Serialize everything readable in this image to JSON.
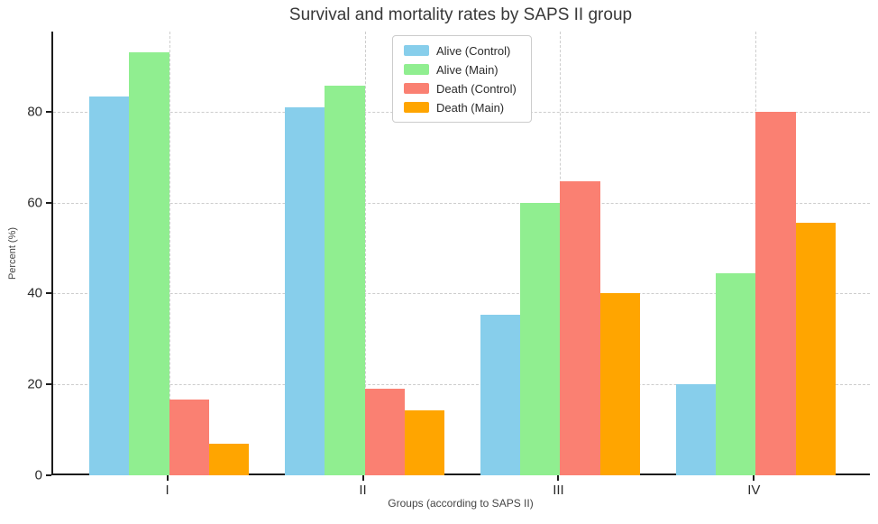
{
  "chart_data": {
    "type": "bar",
    "title": "Survival and mortality rates by SAPS II group",
    "xlabel": "Groups (according to SAPS II)",
    "ylabel": "Percent (%)",
    "categories": [
      "I",
      "II",
      "III",
      "IV"
    ],
    "series": [
      {
        "name": "Alive (Control)",
        "color": "#87CEEB",
        "values": [
          83.3,
          81.0,
          35.3,
          20.0
        ]
      },
      {
        "name": "Alive (Main)",
        "color": "#90EE90",
        "values": [
          93.0,
          85.7,
          60.0,
          44.4
        ]
      },
      {
        "name": "Death (Control)",
        "color": "#FA8072",
        "values": [
          16.7,
          19.0,
          64.7,
          80.0
        ]
      },
      {
        "name": "Death (Main)",
        "color": "#FFA500",
        "values": [
          7.0,
          14.3,
          40.0,
          55.6
        ]
      }
    ],
    "yticks": [
      0,
      20,
      40,
      60,
      80
    ],
    "ylim": [
      0,
      97.6
    ],
    "grid": true,
    "grid_style": "dashed",
    "legend_position": "upper center",
    "colors": {
      "spine": "#1c1c1c",
      "gridline": "#cdcdcd",
      "title_text": "#383838",
      "tick_text": "#2b2b2b",
      "axis_label_text": "#454545"
    }
  }
}
